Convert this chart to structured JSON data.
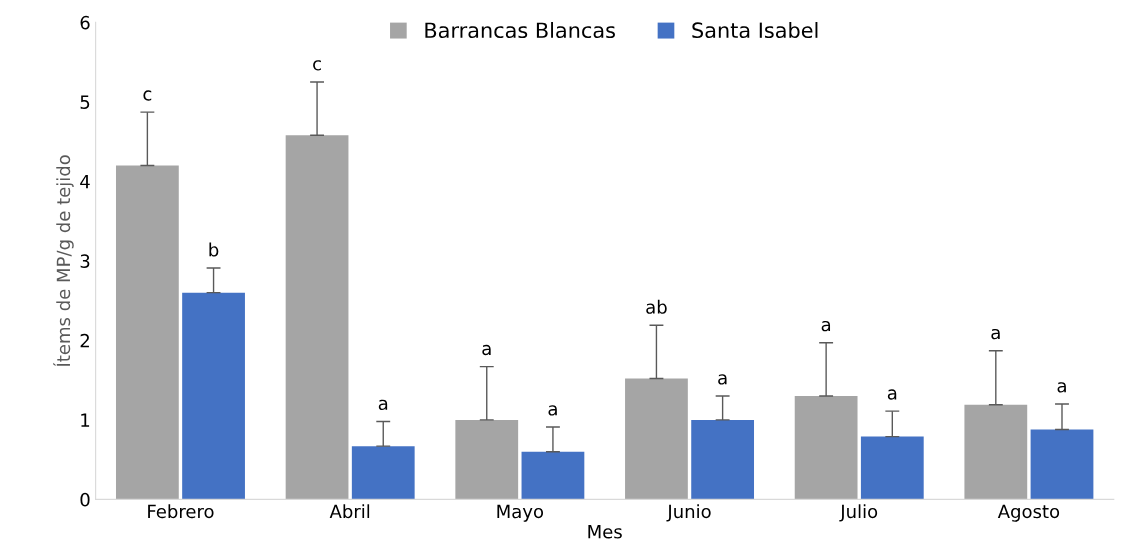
{
  "chart_data": {
    "type": "bar",
    "xlabel": "Mes",
    "ylabel": "Ítems de MP/g de tejido",
    "categories": [
      "Febrero",
      "Abril",
      "Mayo",
      "Junio",
      "Julio",
      "Agosto"
    ],
    "series": [
      {
        "name": "Barrancas Blancas",
        "color": "#a5a5a5",
        "values": [
          4.2,
          4.58,
          1.0,
          1.52,
          1.3,
          1.19
        ],
        "errors": [
          [
            4.2,
            4.87
          ],
          [
            4.58,
            5.25
          ],
          [
            1.0,
            1.67
          ],
          [
            1.52,
            2.19
          ],
          [
            1.3,
            1.97
          ],
          [
            1.19,
            1.87
          ]
        ]
      },
      {
        "name": "Santa Isabel",
        "color": "#4472c4",
        "values": [
          2.6,
          0.67,
          0.6,
          1.0,
          0.79,
          0.88
        ],
        "errors": [
          [
            2.6,
            2.91
          ],
          [
            0.67,
            0.98
          ],
          [
            0.6,
            0.91
          ],
          [
            1.0,
            1.3
          ],
          [
            0.79,
            1.11
          ],
          [
            0.88,
            1.2
          ]
        ]
      }
    ],
    "annotations": [
      "c",
      "b",
      "c",
      "a",
      "a",
      "a",
      "ab",
      "a",
      "a",
      "a",
      "a",
      "a"
    ],
    "ylim": [
      0,
      6
    ],
    "yticks": [
      0,
      1,
      2,
      3,
      4,
      5,
      6
    ],
    "grid": false,
    "legend": "top"
  }
}
